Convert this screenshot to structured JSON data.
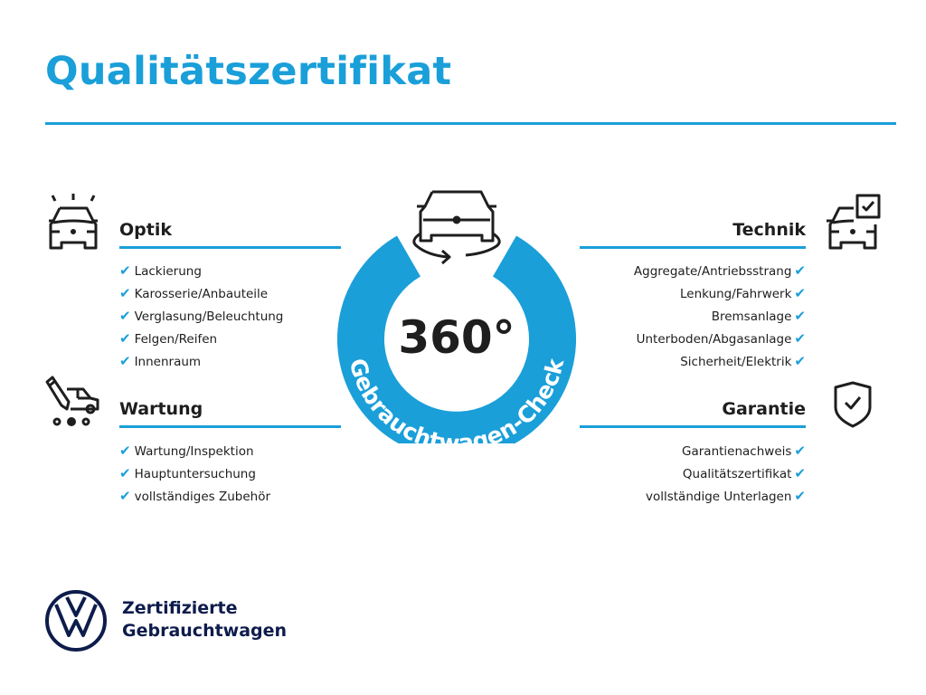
{
  "title": "Qualitätszertifikat",
  "colors": {
    "accent": "#1a9fd9",
    "text": "#1e1e1e",
    "brand_navy": "#0e1c4c"
  },
  "check_glyph": "✔",
  "badge": {
    "number": "360°",
    "arc_text": "Gebrauchtwagen-Check",
    "icon": "car-rotate-icon"
  },
  "sections": {
    "optik": {
      "heading": "Optik",
      "icon": "car-lights-icon",
      "items": [
        "Lackierung",
        "Karosserie/Anbauteile",
        "Verglasung/Beleuchtung",
        "Felgen/Reifen",
        "Innenraum"
      ]
    },
    "wartung": {
      "heading": "Wartung",
      "icon": "car-service-pencil-icon",
      "items": [
        "Wartung/Inspektion",
        "Hauptuntersuchung",
        "vollständiges Zubehör"
      ]
    },
    "technik": {
      "heading": "Technik",
      "icon": "car-checkbox-icon",
      "items": [
        "Aggregate/Antriebsstrang",
        "Lenkung/Fahrwerk",
        "Bremsanlage",
        "Unterboden/Abgasanlage",
        "Sicherheit/Elektrik"
      ]
    },
    "garantie": {
      "heading": "Garantie",
      "icon": "shield-check-icon",
      "items": [
        "Garantienachweis",
        "Qualitätszertifikat",
        "vollständige Unterlagen"
      ]
    }
  },
  "footer": {
    "line1": "Zertifizierte",
    "line2": "Gebrauchtwagen",
    "logo": "vw-logo"
  }
}
